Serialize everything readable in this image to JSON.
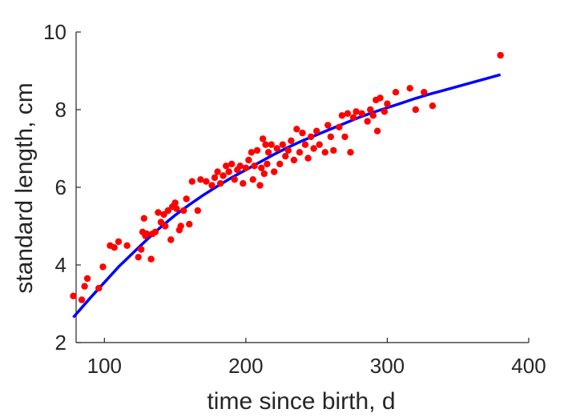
{
  "chart_data": {
    "type": "scatter",
    "title": "",
    "xlabel": "time since birth, d",
    "ylabel": "standard length, cm",
    "xlim": [
      80,
      400
    ],
    "ylim": [
      2,
      10
    ],
    "xticks": [
      100,
      200,
      300,
      400
    ],
    "yticks": [
      2,
      4,
      6,
      8,
      10
    ],
    "grid": false,
    "legend": "none",
    "series": [
      {
        "type": "scatter",
        "color": "#ff0000",
        "points": [
          [
            78,
            3.2
          ],
          [
            84,
            3.1
          ],
          [
            86,
            3.45
          ],
          [
            88,
            3.65
          ],
          [
            96,
            3.4
          ],
          [
            99,
            3.95
          ],
          [
            104,
            4.5
          ],
          [
            107,
            4.45
          ],
          [
            110,
            4.6
          ],
          [
            116,
            4.5
          ],
          [
            124,
            4.2
          ],
          [
            126,
            4.4
          ],
          [
            127,
            4.85
          ],
          [
            128,
            5.2
          ],
          [
            129,
            4.75
          ],
          [
            130,
            4.8
          ],
          [
            133,
            4.15
          ],
          [
            134,
            4.8
          ],
          [
            136,
            4.85
          ],
          [
            138,
            5.35
          ],
          [
            140,
            5.1
          ],
          [
            142,
            5.3
          ],
          [
            143,
            5.0
          ],
          [
            145,
            5.4
          ],
          [
            147,
            4.65
          ],
          [
            148,
            5.5
          ],
          [
            150,
            5.6
          ],
          [
            151,
            5.45
          ],
          [
            153,
            4.9
          ],
          [
            154,
            5.0
          ],
          [
            156,
            5.4
          ],
          [
            158,
            5.7
          ],
          [
            160,
            5.05
          ],
          [
            162,
            6.15
          ],
          [
            166,
            5.4
          ],
          [
            168,
            6.2
          ],
          [
            172,
            6.15
          ],
          [
            176,
            6.05
          ],
          [
            178,
            6.25
          ],
          [
            180,
            6.4
          ],
          [
            182,
            6.1
          ],
          [
            184,
            6.3
          ],
          [
            186,
            6.55
          ],
          [
            188,
            6.4
          ],
          [
            190,
            6.6
          ],
          [
            192,
            6.2
          ],
          [
            194,
            6.45
          ],
          [
            196,
            6.55
          ],
          [
            198,
            6.1
          ],
          [
            200,
            6.5
          ],
          [
            202,
            6.7
          ],
          [
            204,
            6.9
          ],
          [
            205,
            6.2
          ],
          [
            206,
            6.55
          ],
          [
            208,
            6.95
          ],
          [
            210,
            6.05
          ],
          [
            211,
            6.5
          ],
          [
            212,
            7.25
          ],
          [
            213,
            6.35
          ],
          [
            214,
            7.1
          ],
          [
            215,
            6.6
          ],
          [
            216,
            6.9
          ],
          [
            218,
            7.1
          ],
          [
            220,
            6.4
          ],
          [
            222,
            7.0
          ],
          [
            224,
            6.6
          ],
          [
            226,
            7.1
          ],
          [
            228,
            6.8
          ],
          [
            230,
            6.95
          ],
          [
            232,
            7.2
          ],
          [
            234,
            6.7
          ],
          [
            236,
            7.5
          ],
          [
            238,
            6.9
          ],
          [
            240,
            7.4
          ],
          [
            242,
            7.1
          ],
          [
            244,
            6.75
          ],
          [
            246,
            7.3
          ],
          [
            248,
            7.0
          ],
          [
            250,
            7.45
          ],
          [
            252,
            7.1
          ],
          [
            256,
            6.9
          ],
          [
            258,
            7.6
          ],
          [
            260,
            7.3
          ],
          [
            262,
            6.95
          ],
          [
            266,
            7.55
          ],
          [
            268,
            7.85
          ],
          [
            270,
            7.3
          ],
          [
            272,
            7.9
          ],
          [
            274,
            6.9
          ],
          [
            276,
            7.8
          ],
          [
            278,
            7.95
          ],
          [
            282,
            7.9
          ],
          [
            286,
            7.7
          ],
          [
            288,
            8.0
          ],
          [
            290,
            7.85
          ],
          [
            292,
            8.25
          ],
          [
            293,
            7.45
          ],
          [
            295,
            8.3
          ],
          [
            298,
            7.95
          ],
          [
            300,
            8.15
          ],
          [
            306,
            8.45
          ],
          [
            316,
            8.55
          ],
          [
            320,
            8.0
          ],
          [
            326,
            8.45
          ],
          [
            332,
            8.1
          ],
          [
            380,
            9.4
          ]
        ]
      },
      {
        "type": "line",
        "color": "#0000ff",
        "x": [
          78,
          90,
          100,
          110,
          120,
          130,
          140,
          150,
          160,
          170,
          180,
          190,
          200,
          210,
          220,
          230,
          240,
          250,
          260,
          270,
          280,
          290,
          300,
          310,
          320,
          330,
          340,
          350,
          360,
          370,
          380
        ],
        "y": [
          2.65,
          3.15,
          3.55,
          3.95,
          4.3,
          4.65,
          4.98,
          5.28,
          5.55,
          5.8,
          6.03,
          6.25,
          6.45,
          6.65,
          6.85,
          7.03,
          7.2,
          7.35,
          7.5,
          7.65,
          7.8,
          7.93,
          8.05,
          8.17,
          8.29,
          8.4,
          8.5,
          8.6,
          8.7,
          8.8,
          8.9
        ]
      }
    ]
  }
}
